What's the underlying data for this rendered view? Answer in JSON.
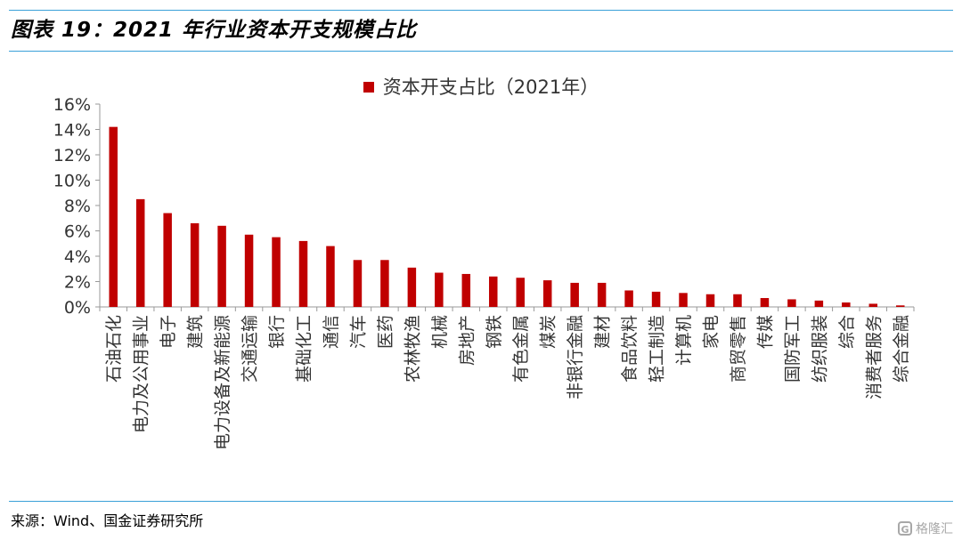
{
  "header": {
    "title": "图表 19：2021 年行业资本开支规模占比"
  },
  "footer": {
    "source": "来源：Wind、国金证券研究所",
    "watermark": "格隆汇"
  },
  "colors": {
    "bar": "#c00000",
    "rule": "#3aa0d8",
    "axis": "#999999"
  },
  "chart_data": {
    "type": "bar",
    "title": "",
    "xlabel": "",
    "ylabel": "",
    "ylim": [
      0,
      16
    ],
    "y_ticks": [
      "0%",
      "2%",
      "4%",
      "6%",
      "8%",
      "10%",
      "12%",
      "14%",
      "16%"
    ],
    "grid": false,
    "legend_position": "top-center",
    "categories": [
      "石油石化",
      "电力及公用事业",
      "电子",
      "建筑",
      "电力设备及新能源",
      "交通运输",
      "银行",
      "基础化工",
      "通信",
      "汽车",
      "医药",
      "农林牧渔",
      "机械",
      "房地产",
      "钢铁",
      "有色金属",
      "煤炭",
      "非银行金融",
      "建材",
      "食品饮料",
      "轻工制造",
      "计算机",
      "家电",
      "商贸零售",
      "传媒",
      "国防军工",
      "纺织服装",
      "综合",
      "消费者服务",
      "综合金融"
    ],
    "series": [
      {
        "name": "资本开支占比（2021年）",
        "values": [
          14.2,
          8.5,
          7.4,
          6.6,
          6.4,
          5.7,
          5.5,
          5.2,
          4.8,
          3.7,
          3.7,
          3.1,
          2.7,
          2.6,
          2.4,
          2.3,
          2.1,
          1.9,
          1.9,
          1.3,
          1.2,
          1.1,
          1.0,
          1.0,
          0.7,
          0.6,
          0.5,
          0.35,
          0.25,
          0.12
        ]
      }
    ]
  }
}
